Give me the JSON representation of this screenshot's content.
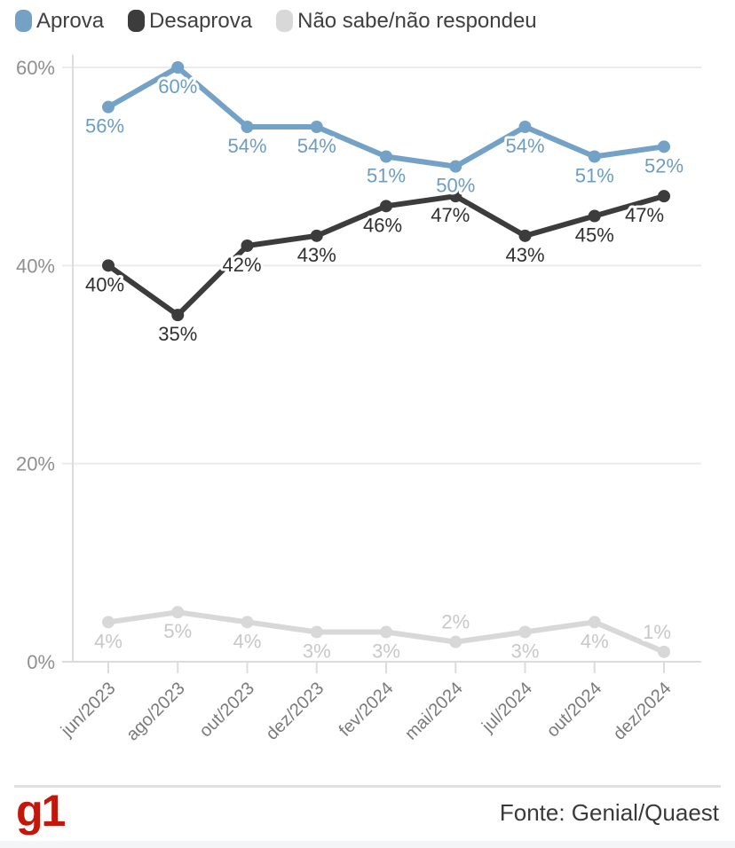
{
  "legend": {
    "items": [
      {
        "label": "Aprova",
        "color": "#74a2c6"
      },
      {
        "label": "Desaprova",
        "color": "#3c3c3c"
      },
      {
        "label": "Não sabe/não respondeu",
        "color": "#d8d8d8"
      }
    ]
  },
  "chart_data": {
    "type": "line",
    "x": [
      "jun/2023",
      "ago/2023",
      "out/2023",
      "dez/2023",
      "fev/2024",
      "mai/2024",
      "jul/2024",
      "out/2024",
      "dez/2024"
    ],
    "series": [
      {
        "name": "Aprova",
        "color": "#74a2c6",
        "label_color": "#6c9dc3",
        "values": [
          56,
          60,
          54,
          54,
          51,
          50,
          54,
          51,
          52
        ],
        "labels": [
          "56%",
          "60%",
          "54%",
          "54%",
          "51%",
          "50%",
          "54%",
          "51%",
          "52%"
        ],
        "label_pos": [
          "below",
          "below",
          "below",
          "below",
          "below",
          "below",
          "below",
          "below",
          "below"
        ],
        "label_dx": [
          -4,
          0,
          0,
          0,
          0,
          0,
          0,
          0,
          0
        ]
      },
      {
        "name": "Desaprova",
        "color": "#3c3c3c",
        "label_color": "#303030",
        "values": [
          40,
          35,
          42,
          43,
          46,
          47,
          43,
          45,
          47
        ],
        "labels": [
          "40%",
          "35%",
          "42%",
          "43%",
          "46%",
          "47%",
          "43%",
          "45%",
          "47%"
        ],
        "label_pos": [
          "below",
          "below",
          "below",
          "below",
          "below",
          "below",
          "below",
          "below",
          "below"
        ],
        "label_dx": [
          -4,
          0,
          -6,
          0,
          -4,
          -6,
          0,
          0,
          -22
        ]
      },
      {
        "name": "Não sabe/não respondeu",
        "color": "#d8d8d8",
        "label_color": "#c8c8c8",
        "values": [
          4,
          5,
          4,
          3,
          3,
          2,
          3,
          4,
          1
        ],
        "labels": [
          "4%",
          "5%",
          "4%",
          "3%",
          "3%",
          "2%",
          "3%",
          "4%",
          "1%"
        ],
        "label_pos": [
          "below",
          "below",
          "below",
          "below",
          "below",
          "above",
          "below",
          "below",
          "above"
        ],
        "label_dx": [
          0,
          0,
          0,
          0,
          0,
          0,
          0,
          0,
          -8
        ]
      }
    ],
    "ytick_labels": [
      "0%",
      "20%",
      "40%",
      "60%"
    ],
    "yticks": [
      0,
      20,
      40,
      60
    ],
    "ylim": [
      0,
      62
    ],
    "grid": true,
    "legend_position": "top",
    "xlabel_rotation": -45
  },
  "footer": {
    "logo": "g1",
    "logo_color": "#c4170c",
    "source": "Fonte: Genial/Quaest"
  }
}
